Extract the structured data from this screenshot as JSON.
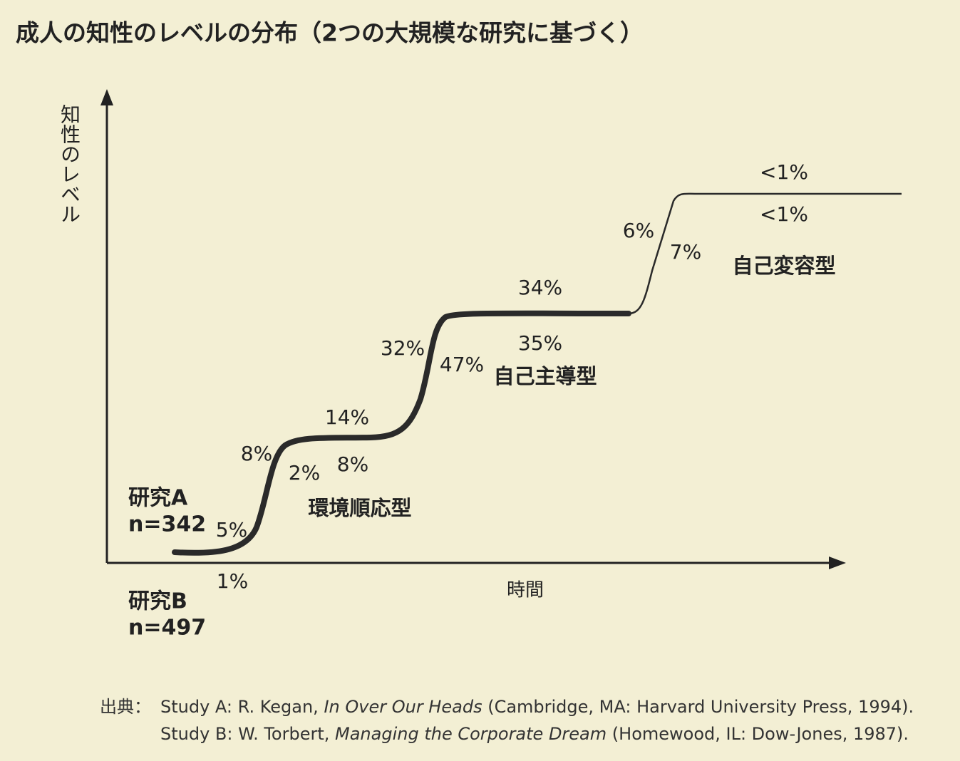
{
  "title": "成人の知性のレベルの分布（2つの大規模な研究に基づく）",
  "y_axis_label": "知性のレベル",
  "x_axis_label": "時間",
  "studies": [
    {
      "name": "研究A",
      "n": "n=342"
    },
    {
      "name": "研究B",
      "n": "n=497"
    }
  ],
  "stages": [
    "環境順応型",
    "自己主導型",
    "自己変容型"
  ],
  "study_a_labels": [
    "5%",
    "8%",
    "14%",
    "32%",
    "34%",
    "6%",
    "<1%"
  ],
  "study_b_labels": [
    "1%",
    "2%",
    "8%",
    "47%",
    "35%",
    "7%",
    "<1%"
  ],
  "source": {
    "label": "出典：",
    "lines": [
      [
        "Study A: R. Kegan, ",
        "In Over Our Heads",
        " (Cambridge, MA: Harvard University Press, 1994)."
      ],
      [
        "Study B: W. Torbert, ",
        "Managing the Corporate Dream",
        " (Homewood, IL: Dow-Jones, 1987)."
      ]
    ]
  }
}
